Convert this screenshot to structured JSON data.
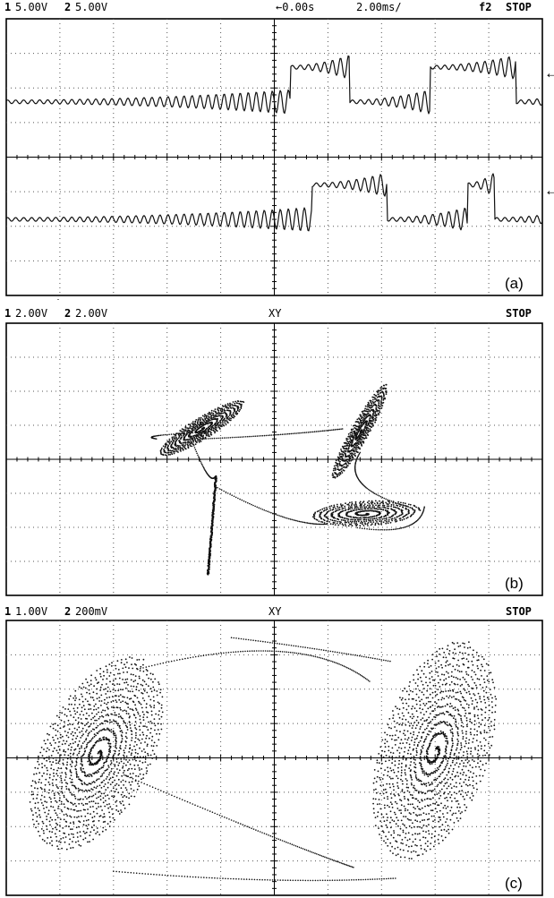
{
  "panels": [
    {
      "id": "a",
      "ch1_num": "1",
      "ch1_scale": "5.00V",
      "ch2_num": "2",
      "ch2_scale": "5.00V",
      "time_ref": "←0.00s",
      "timebase": "2.00ms/",
      "trigger": "f2",
      "run_state": "STOP",
      "label": "(a)"
    },
    {
      "id": "b",
      "ch1_num": "1",
      "ch1_scale": "2.00V",
      "ch2_num": "2",
      "ch2_scale": "2.00V",
      "mode": "XY",
      "run_state": "STOP",
      "label": "(b)"
    },
    {
      "id": "c",
      "ch1_num": "1",
      "ch1_scale": "1.00V",
      "ch2_num": "2",
      "ch2_scale": "200mV",
      "mode": "XY",
      "run_state": "STOP",
      "label": "(c)"
    }
  ],
  "chart_data": [
    {
      "type": "line",
      "mode": "YT",
      "grid": "10x8 divisions, dotted",
      "series": [
        {
          "name": "1",
          "unit": "div",
          "x_transitions_div": [
            0.3,
            1.4,
            2.9,
            4.5,
            5.7
          ],
          "levels_div": [
            2.6,
            1.6
          ],
          "oscillation_amplitude_div": 0.35
        },
        {
          "name": "2",
          "unit": "div",
          "x_transitions_div": [
            0.7,
            2.1,
            3.6,
            4.1,
            5.9
          ],
          "levels_div": [
            -0.8,
            -1.8
          ],
          "oscillation_amplitude_div": 0.35
        }
      ]
    },
    {
      "type": "scatter",
      "mode": "XY",
      "grid": "10x8 divisions, dotted",
      "attractor_centers_div": [
        [
          -1.35,
          0.9
        ],
        [
          1.6,
          0.8
        ],
        [
          -1.1,
          -2.0
        ],
        [
          1.7,
          -1.6
        ]
      ]
    },
    {
      "type": "scatter",
      "mode": "XY",
      "grid": "10x8 divisions, dotted",
      "attractor_centers_div": [
        [
          -3.3,
          0.1
        ],
        [
          3.0,
          0.2
        ]
      ]
    }
  ]
}
